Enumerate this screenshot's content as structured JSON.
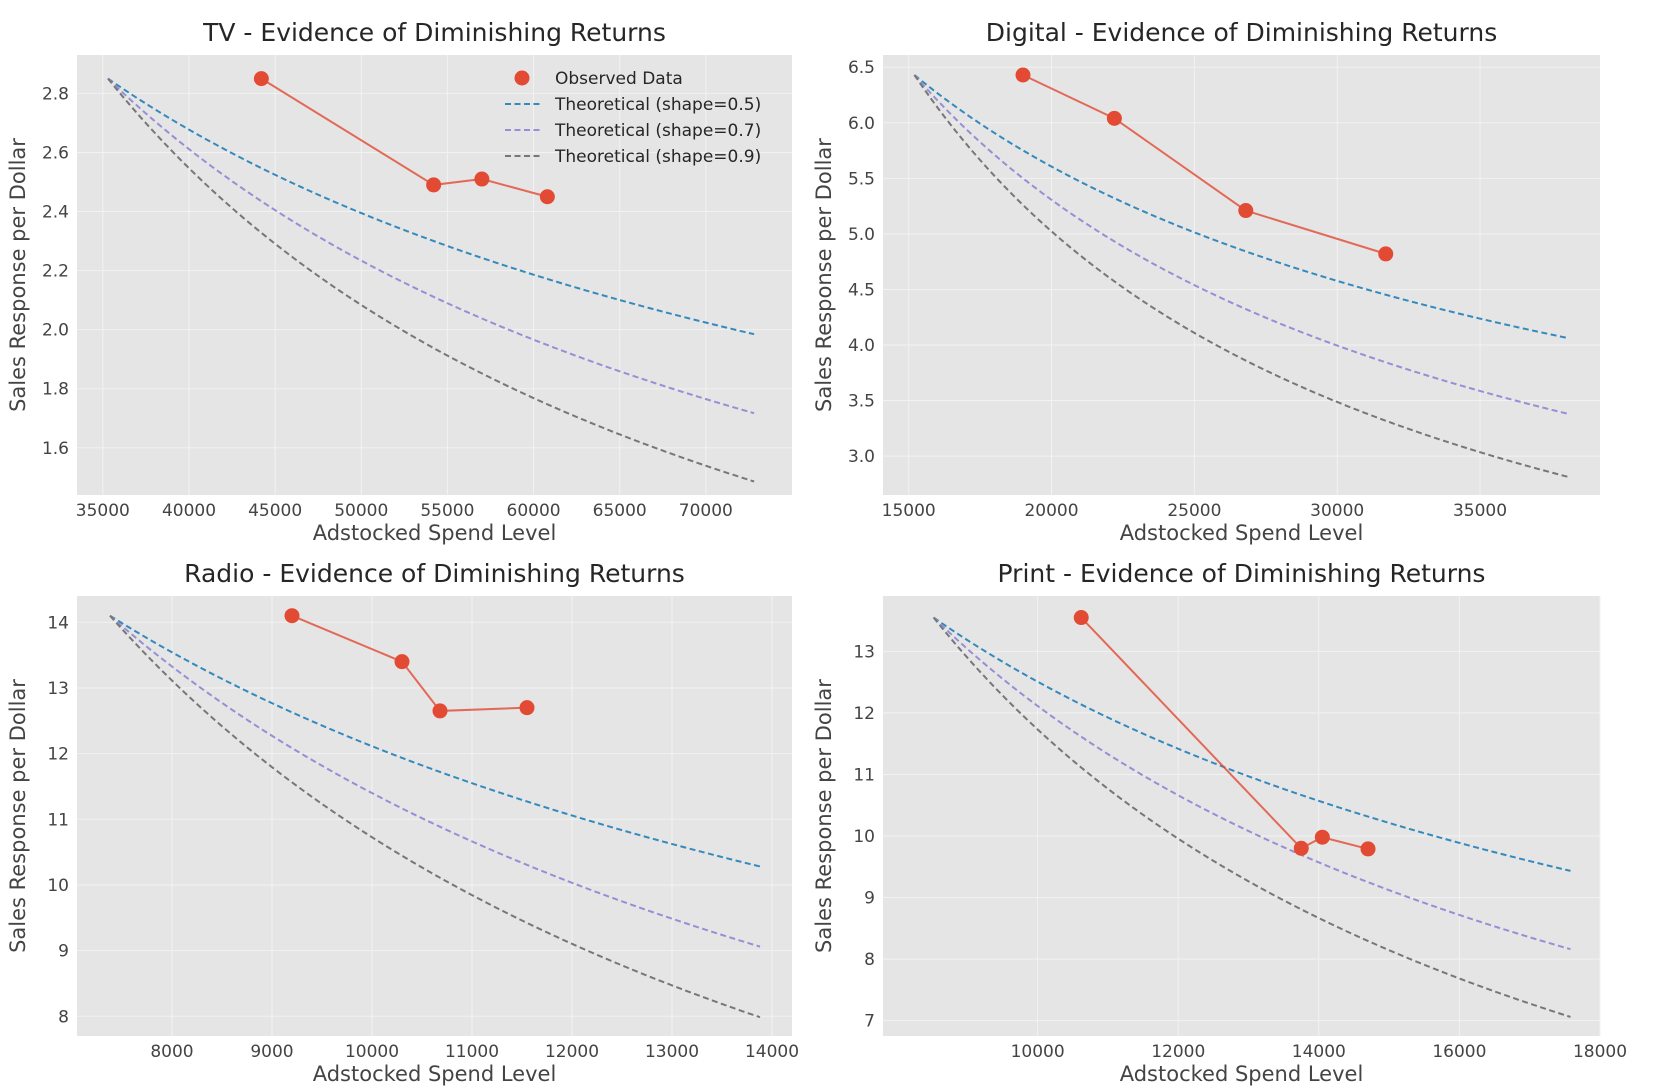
{
  "chart_data": [
    {
      "type": "line",
      "title": "TV - Evidence of Diminishing Returns",
      "xlabel": "Adstocked Spend Level",
      "ylabel": "Sales Response per Dollar",
      "xlim": [
        33500,
        75000
      ],
      "ylim": [
        1.44,
        2.93
      ],
      "xticks": [
        35000,
        40000,
        45000,
        50000,
        55000,
        60000,
        65000,
        70000
      ],
      "yticks": [
        1.6,
        1.8,
        2.0,
        2.2,
        2.4,
        2.6,
        2.8
      ],
      "ytick_decimals": 1,
      "grid": true,
      "legend": "top-right",
      "observed": {
        "name": "Observed Data",
        "x": [
          44200,
          54200,
          57000,
          60800
        ],
        "y": [
          2.85,
          2.49,
          2.51,
          2.45
        ]
      },
      "theoretical": {
        "x0": 35300,
        "x1": 72800,
        "y0": 2.85,
        "series": [
          {
            "name": "Theoretical (shape=0.5)",
            "shape": 0.5,
            "color": "#348ABD"
          },
          {
            "name": "Theoretical (shape=0.7)",
            "shape": 0.7,
            "color": "#988ED5"
          },
          {
            "name": "Theoretical (shape=0.9)",
            "shape": 0.9,
            "color": "#777777"
          }
        ]
      }
    },
    {
      "type": "line",
      "title": "Digital - Evidence of Diminishing Returns",
      "xlabel": "Adstocked Spend Level",
      "ylabel": "Sales Response per Dollar",
      "xlim": [
        14100,
        39200
      ],
      "ylim": [
        2.65,
        6.61
      ],
      "xticks": [
        15000,
        20000,
        25000,
        30000,
        35000
      ],
      "yticks": [
        3.0,
        3.5,
        4.0,
        4.5,
        5.0,
        5.5,
        6.0,
        6.5
      ],
      "ytick_decimals": 1,
      "grid": true,
      "observed": {
        "name": "Observed Data",
        "x": [
          19000,
          22200,
          26800,
          31700
        ],
        "y": [
          6.43,
          6.04,
          5.21,
          4.82
        ]
      },
      "theoretical": {
        "x0": 15200,
        "x1": 38100,
        "y0": 6.43,
        "series": [
          {
            "name": "Theoretical (shape=0.5)",
            "shape": 0.5,
            "color": "#348ABD"
          },
          {
            "name": "Theoretical (shape=0.7)",
            "shape": 0.7,
            "color": "#988ED5"
          },
          {
            "name": "Theoretical (shape=0.9)",
            "shape": 0.9,
            "color": "#777777"
          }
        ]
      }
    },
    {
      "type": "line",
      "title": "Radio - Evidence of Diminishing Returns",
      "xlabel": "Adstocked Spend Level",
      "ylabel": "Sales Response per Dollar",
      "xlim": [
        7050,
        14200
      ],
      "ylim": [
        7.7,
        14.4
      ],
      "xticks": [
        8000,
        9000,
        10000,
        11000,
        12000,
        13000,
        14000
      ],
      "yticks": [
        8,
        9,
        10,
        11,
        12,
        13,
        14
      ],
      "ytick_decimals": 0,
      "grid": true,
      "observed": {
        "name": "Observed Data",
        "x": [
          9200,
          10300,
          10680,
          11550
        ],
        "y": [
          14.1,
          13.4,
          12.65,
          12.7
        ]
      },
      "theoretical": {
        "x0": 7380,
        "x1": 13880,
        "y0": 14.1,
        "series": [
          {
            "name": "Theoretical (shape=0.5)",
            "shape": 0.5,
            "color": "#348ABD"
          },
          {
            "name": "Theoretical (shape=0.7)",
            "shape": 0.7,
            "color": "#988ED5"
          },
          {
            "name": "Theoretical (shape=0.9)",
            "shape": 0.9,
            "color": "#777777"
          }
        ]
      }
    },
    {
      "type": "line",
      "title": "Print - Evidence of Diminishing Returns",
      "xlabel": "Adstocked Spend Level",
      "ylabel": "Sales Response per Dollar",
      "xlim": [
        7800,
        18000
      ],
      "ylim": [
        6.75,
        13.9
      ],
      "xticks": [
        10000,
        12000,
        14000,
        16000,
        18000
      ],
      "yticks": [
        7,
        8,
        9,
        10,
        11,
        12,
        13
      ],
      "ytick_decimals": 0,
      "grid": true,
      "observed": {
        "name": "Observed Data",
        "x": [
          10620,
          13750,
          14050,
          14700
        ],
        "y": [
          13.55,
          9.8,
          9.98,
          9.79
        ]
      },
      "theoretical": {
        "x0": 8520,
        "x1": 17580,
        "y0": 13.55,
        "series": [
          {
            "name": "Theoretical (shape=0.5)",
            "shape": 0.5,
            "color": "#348ABD"
          },
          {
            "name": "Theoretical (shape=0.7)",
            "shape": 0.7,
            "color": "#988ED5"
          },
          {
            "name": "Theoretical (shape=0.9)",
            "shape": 0.9,
            "color": "#777777"
          }
        ]
      }
    }
  ],
  "colors": {
    "observed": "#E24A33",
    "axes_bg": "#E5E5E5",
    "grid": "#F2F2F2"
  }
}
